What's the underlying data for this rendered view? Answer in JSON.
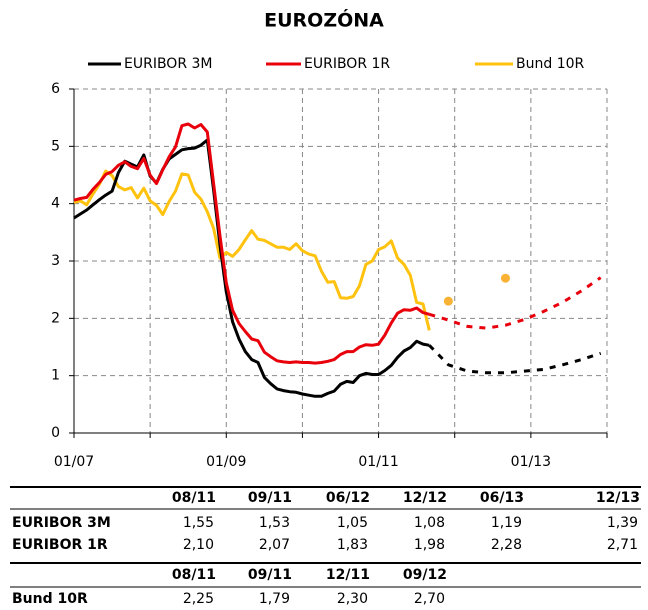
{
  "chart_data": {
    "type": "line",
    "title": "EUROZÓNA",
    "x": [
      "01/07",
      "02/07",
      "03/07",
      "04/07",
      "05/07",
      "06/07",
      "07/07",
      "08/07",
      "09/07",
      "10/07",
      "11/07",
      "12/07",
      "01/08",
      "02/08",
      "03/08",
      "04/08",
      "05/08",
      "06/08",
      "07/08",
      "08/08",
      "09/08",
      "10/08",
      "11/08",
      "12/08",
      "01/09",
      "02/09",
      "03/09",
      "04/09",
      "05/09",
      "06/09",
      "07/09",
      "08/09",
      "09/09",
      "10/09",
      "11/09",
      "12/09",
      "01/10",
      "02/10",
      "03/10",
      "04/10",
      "05/10",
      "06/10",
      "07/10",
      "08/10",
      "09/10",
      "10/10",
      "11/10",
      "12/10",
      "01/11",
      "02/11",
      "03/11",
      "04/11",
      "05/11",
      "06/11",
      "07/11",
      "08/11",
      "09/11"
    ],
    "series": [
      {
        "name": "EURIBOR 3M",
        "color": "#000000",
        "values": [
          3.75,
          3.82,
          3.89,
          3.98,
          4.07,
          4.15,
          4.22,
          4.54,
          4.74,
          4.69,
          4.64,
          4.85,
          4.48,
          4.36,
          4.6,
          4.78,
          4.86,
          4.94,
          4.96,
          4.97,
          5.02,
          5.11,
          4.24,
          3.29,
          2.46,
          1.94,
          1.64,
          1.42,
          1.28,
          1.23,
          0.97,
          0.86,
          0.77,
          0.74,
          0.72,
          0.71,
          0.68,
          0.66,
          0.64,
          0.64,
          0.69,
          0.73,
          0.85,
          0.9,
          0.88,
          1.0,
          1.04,
          1.02,
          1.02,
          1.09,
          1.18,
          1.32,
          1.43,
          1.49,
          1.6,
          1.55,
          1.53
        ],
        "forecast": {
          "style": "dashed",
          "x": [
            "09/11",
            "12/11",
            "03/12",
            "06/12",
            "09/12",
            "12/12",
            "03/13",
            "06/13",
            "09/13",
            "12/13"
          ],
          "values": [
            1.53,
            1.19,
            1.08,
            1.05,
            1.05,
            1.08,
            1.11,
            1.19,
            1.28,
            1.39
          ]
        }
      },
      {
        "name": "EURIBOR 1R",
        "color": "#e8000b",
        "values": [
          4.06,
          4.09,
          4.11,
          4.25,
          4.37,
          4.51,
          4.56,
          4.67,
          4.73,
          4.65,
          4.61,
          4.79,
          4.5,
          4.35,
          4.59,
          4.82,
          4.99,
          5.36,
          5.39,
          5.32,
          5.38,
          5.25,
          4.35,
          3.45,
          2.62,
          2.14,
          1.91,
          1.77,
          1.64,
          1.61,
          1.41,
          1.33,
          1.26,
          1.24,
          1.23,
          1.24,
          1.23,
          1.23,
          1.22,
          1.23,
          1.25,
          1.28,
          1.37,
          1.42,
          1.42,
          1.5,
          1.54,
          1.53,
          1.55,
          1.71,
          1.92,
          2.09,
          2.15,
          2.14,
          2.18,
          2.1,
          2.07
        ],
        "forecast": {
          "style": "dashed",
          "x": [
            "09/11",
            "12/11",
            "03/12",
            "06/12",
            "09/12",
            "12/12",
            "03/13",
            "06/13",
            "09/13",
            "12/13"
          ],
          "values": [
            2.07,
            1.97,
            1.86,
            1.83,
            1.88,
            1.98,
            2.12,
            2.28,
            2.48,
            2.71
          ]
        }
      },
      {
        "name": "Bund 10R",
        "color": "#ffc20e",
        "values": [
          4.02,
          4.05,
          3.98,
          4.17,
          4.34,
          4.57,
          4.49,
          4.3,
          4.24,
          4.28,
          4.1,
          4.27,
          4.05,
          3.97,
          3.81,
          4.04,
          4.22,
          4.52,
          4.5,
          4.2,
          4.08,
          3.86,
          3.57,
          3.05,
          3.15,
          3.08,
          3.2,
          3.37,
          3.53,
          3.38,
          3.36,
          3.3,
          3.24,
          3.24,
          3.2,
          3.3,
          3.18,
          3.12,
          3.09,
          2.82,
          2.63,
          2.64,
          2.36,
          2.35,
          2.38,
          2.57,
          2.94,
          3.0,
          3.2,
          3.25,
          3.35,
          3.05,
          2.94,
          2.75,
          2.28,
          2.25,
          1.79
        ],
        "forecast": {
          "style": "dots",
          "color": "#f9b233",
          "x": [
            "12/11",
            "09/12"
          ],
          "values": [
            2.3,
            2.7
          ]
        }
      }
    ],
    "xlim": [
      "01/07",
      "01/14"
    ],
    "xticks": [
      "01/07",
      "01/09",
      "01/11",
      "01/13"
    ],
    "xgrid": [
      "01/08",
      "01/10",
      "01/12",
      "01/14"
    ],
    "ylim": [
      0,
      6
    ],
    "yticks": [
      0,
      1,
      2,
      3,
      4,
      5,
      6
    ],
    "grid": true
  },
  "table": {
    "groups": [
      {
        "columns": [
          "08/11",
          "09/11",
          "06/12",
          "12/12",
          "06/13",
          "12/13"
        ],
        "rows": [
          {
            "label": "EURIBOR 3M",
            "cells": [
              "1,55",
              "1,53",
              "1,05",
              "1,08",
              "1,19",
              "1,39"
            ]
          },
          {
            "label": "EURIBOR 1R",
            "cells": [
              "2,10",
              "2,07",
              "1,83",
              "1,98",
              "2,28",
              "2,71"
            ]
          }
        ]
      },
      {
        "columns": [
          "08/11",
          "09/11",
          "12/11",
          "09/12"
        ],
        "rows": [
          {
            "label": "Bund 10R",
            "cells": [
              "2,25",
              "1,79",
              "2,30",
              "2,70"
            ]
          }
        ]
      }
    ]
  }
}
